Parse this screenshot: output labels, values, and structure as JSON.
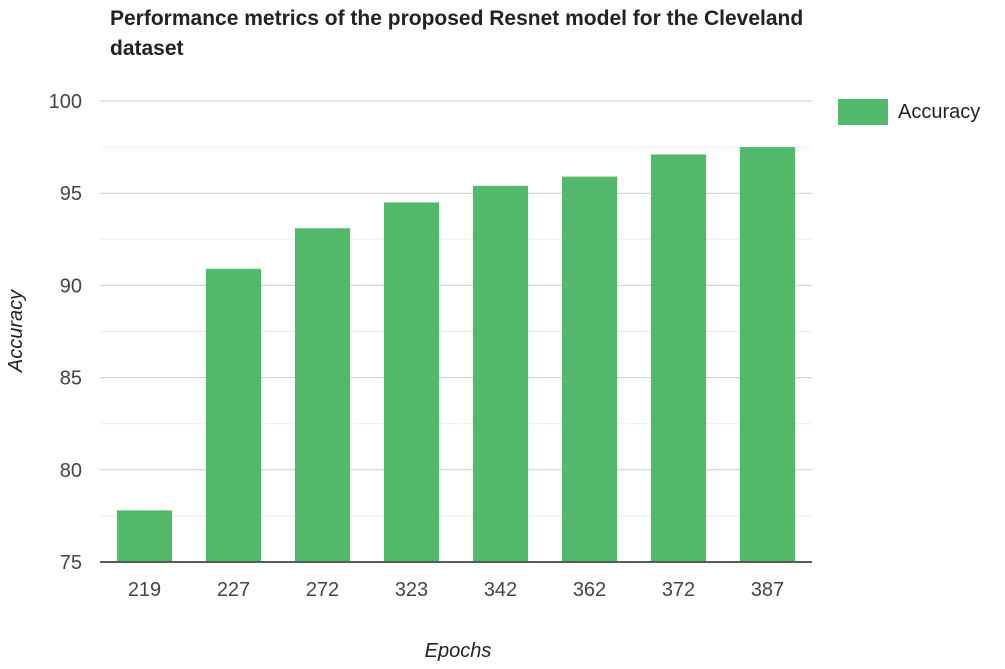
{
  "chart_data": {
    "type": "bar",
    "title": "Performance metrics of the proposed Resnet model for the Cleveland dataset",
    "xlabel": "Epochs",
    "ylabel": "Accuracy",
    "categories": [
      "219",
      "227",
      "272",
      "323",
      "342",
      "362",
      "372",
      "387"
    ],
    "series": [
      {
        "name": "Accuracy",
        "color": "#52b96a",
        "values": [
          77.8,
          90.9,
          93.1,
          94.5,
          95.4,
          95.9,
          97.1,
          97.5
        ]
      }
    ],
    "ylim": [
      75,
      100
    ],
    "yticks": [
      75,
      80,
      85,
      90,
      95,
      100
    ],
    "grid": true,
    "legend_position": "top-right"
  }
}
